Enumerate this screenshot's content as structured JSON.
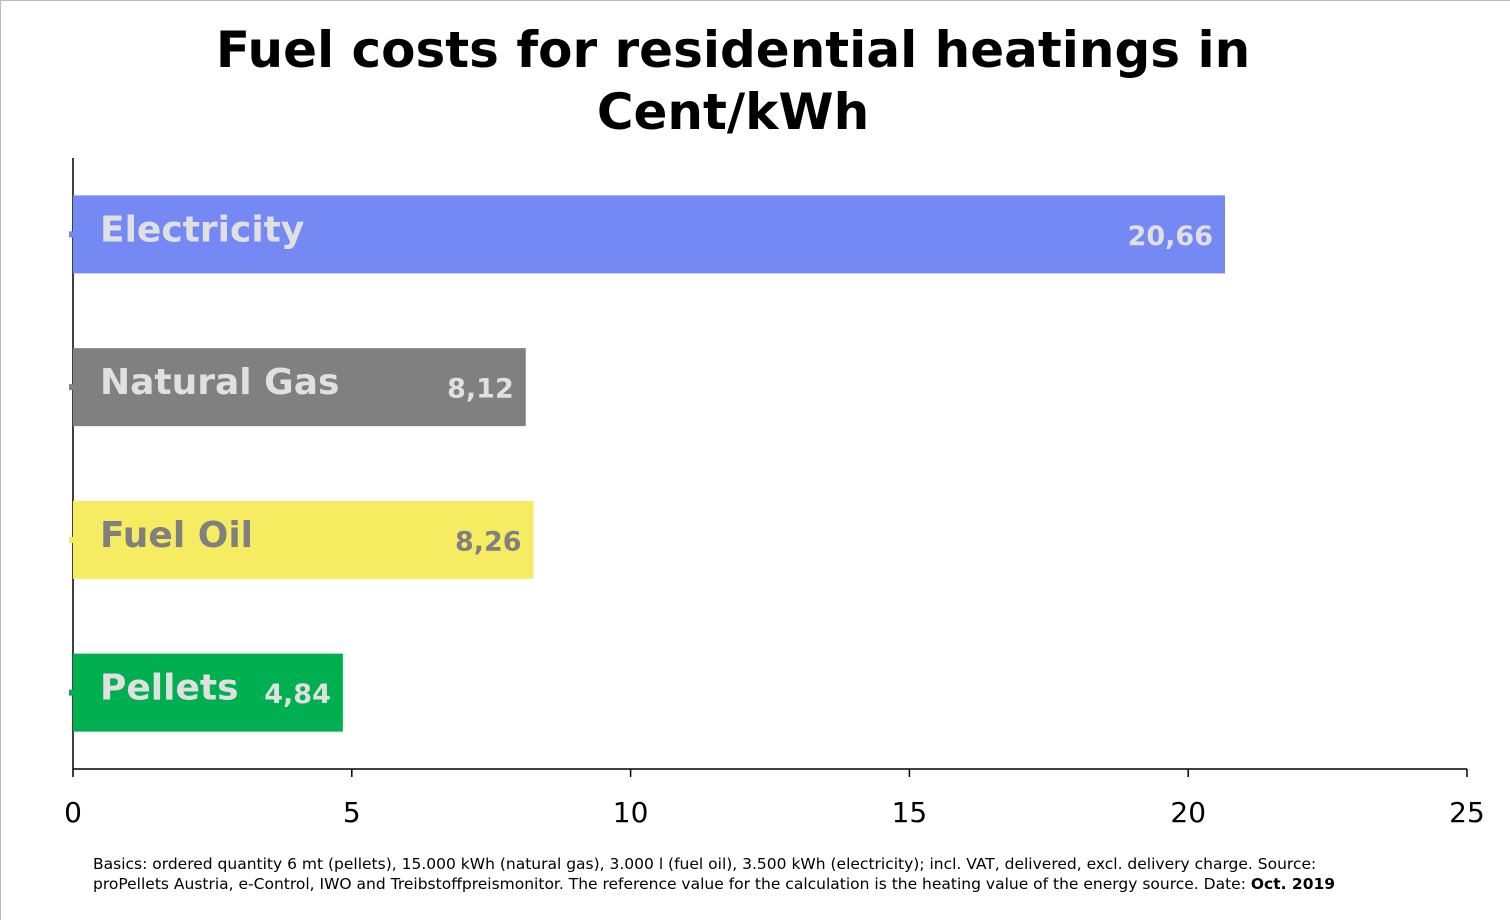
{
  "chart_data": {
    "type": "hbar",
    "title": "Fuel costs for residential heatings in Cent/kWh",
    "categories": [
      "Electricity",
      "Natural Gas",
      "Fuel Oil",
      "Pellets"
    ],
    "values": [
      20.66,
      8.12,
      8.26,
      4.84
    ],
    "value_labels": [
      "20,66",
      "8,12",
      "8,26",
      "4,84"
    ],
    "colors": [
      "#7589f5",
      "#808080",
      "#f5ec62",
      "#00b050"
    ],
    "label_colors": [
      "#e0e0e0",
      "#e0e0e0",
      "#808080",
      "#e0e0e0"
    ],
    "xlim": [
      0,
      25
    ],
    "xticks": [
      0,
      5,
      10,
      15,
      20,
      25
    ],
    "footnote": [
      "Basics: ordered quantity 6 mt (pellets), 15.000 kWh (natural gas), 3.000 l (fuel oil), 3.500 kWh (electricity); incl. VAT, delivered, excl. delivery charge. Source:",
      "proPellets Austria, e-Control, IWO and Treibstoffpreismonitor. The reference value for the calculation is the heating value of the energy source. Date:"
    ],
    "footnote_date": "Oct. 2019"
  }
}
